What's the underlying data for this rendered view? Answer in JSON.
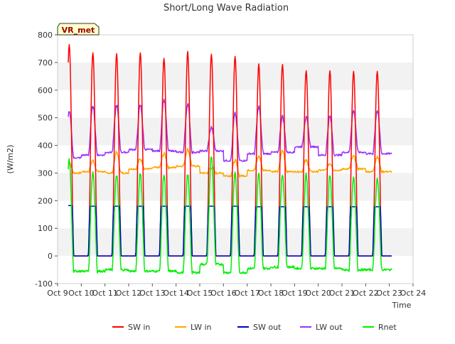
{
  "chart_data": {
    "type": "line",
    "title": "Short/Long Wave Radiation",
    "xlabel": "Time",
    "ylabel": "(W/m2)",
    "annotation": "VR_met",
    "ylim": [
      -100,
      800
    ],
    "yticks": [
      -100,
      0,
      100,
      200,
      300,
      400,
      500,
      600,
      700,
      800
    ],
    "xlim": [
      "Oct 9",
      "Oct 24"
    ],
    "xticks": [
      "Oct 9",
      "Oct 10",
      "Oct 11",
      "Oct 12",
      "Oct 13",
      "Oct 14",
      "Oct 15",
      "Oct 16",
      "Oct 17",
      "Oct 18",
      "Oct 19",
      "Oct 20",
      "Oct 21",
      "Oct 22",
      "Oct 23",
      "Oct 24"
    ],
    "grid": "horizontal bands",
    "legend_position": "bottom",
    "x_units": "days since Oct 9 00:00",
    "series": [
      {
        "name": "SW in",
        "color": "#ff0000",
        "peaks": [
          {
            "day": 0,
            "value": 765
          },
          {
            "day": 1,
            "value": 735
          },
          {
            "day": 2,
            "value": 732
          },
          {
            "day": 3,
            "value": 735
          },
          {
            "day": 4,
            "value": 715
          },
          {
            "day": 5,
            "value": 740
          },
          {
            "day": 6,
            "value": 730
          },
          {
            "day": 7,
            "value": 722
          },
          {
            "day": 8,
            "value": 695
          },
          {
            "day": 9,
            "value": 693
          },
          {
            "day": 10,
            "value": 670
          },
          {
            "day": 11,
            "value": 670
          },
          {
            "day": 12,
            "value": 668
          },
          {
            "day": 13,
            "value": 668
          }
        ]
      },
      {
        "name": "LW in",
        "color": "#ffa500",
        "day_pairs": [
          [
            300,
            340
          ],
          [
            305,
            345
          ],
          [
            300,
            375
          ],
          [
            315,
            350
          ],
          [
            320,
            370
          ],
          [
            325,
            385
          ],
          [
            300,
            320
          ],
          [
            290,
            345
          ],
          [
            310,
            360
          ],
          [
            305,
            380
          ],
          [
            305,
            345
          ],
          [
            310,
            335
          ],
          [
            315,
            360
          ],
          [
            305,
            360
          ]
        ]
      },
      {
        "name": "SW out",
        "color": "#0000cc",
        "peaks": [
          {
            "day": 0,
            "value": 182
          },
          {
            "day": 1,
            "value": 180
          },
          {
            "day": 2,
            "value": 180
          },
          {
            "day": 3,
            "value": 180
          },
          {
            "day": 4,
            "value": 180
          },
          {
            "day": 5,
            "value": 180
          },
          {
            "day": 6,
            "value": 180
          },
          {
            "day": 7,
            "value": 180
          },
          {
            "day": 8,
            "value": 178
          },
          {
            "day": 9,
            "value": 178
          },
          {
            "day": 10,
            "value": 178
          },
          {
            "day": 11,
            "value": 178
          },
          {
            "day": 12,
            "value": 178
          },
          {
            "day": 13,
            "value": 178
          }
        ]
      },
      {
        "name": "LW out",
        "color": "#9b30ff",
        "day_pairs": [
          [
            355,
            520
          ],
          [
            365,
            540
          ],
          [
            375,
            545
          ],
          [
            385,
            545
          ],
          [
            380,
            565
          ],
          [
            375,
            550
          ],
          [
            380,
            465
          ],
          [
            345,
            515
          ],
          [
            370,
            540
          ],
          [
            375,
            505
          ],
          [
            395,
            500
          ],
          [
            365,
            505
          ],
          [
            375,
            525
          ],
          [
            370,
            525
          ]
        ]
      },
      {
        "name": "Rnet",
        "color": "#00ee00",
        "day_pairs": [
          [
            -55,
            350
          ],
          [
            -55,
            305
          ],
          [
            -50,
            295
          ],
          [
            -55,
            300
          ],
          [
            -55,
            295
          ],
          [
            -60,
            295
          ],
          [
            -30,
            360
          ],
          [
            -60,
            300
          ],
          [
            -45,
            295
          ],
          [
            -40,
            295
          ],
          [
            -45,
            295
          ],
          [
            -45,
            295
          ],
          [
            -50,
            280
          ],
          [
            -50,
            280
          ]
        ]
      }
    ]
  }
}
